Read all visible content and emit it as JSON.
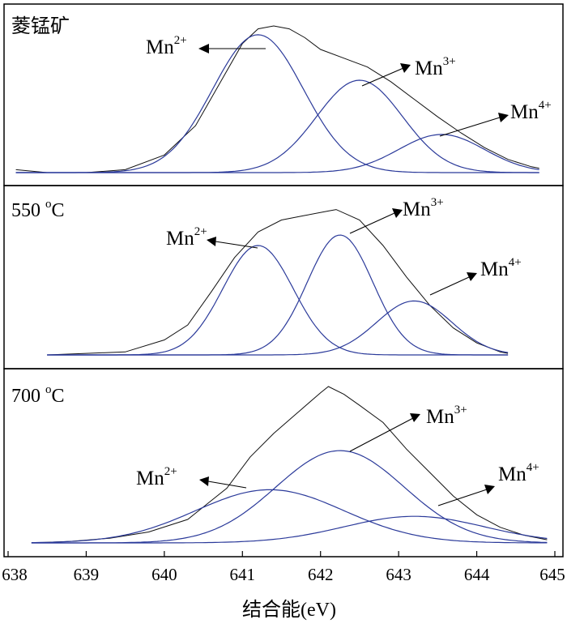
{
  "chart_data": {
    "type": "line",
    "xlabel": "结合能(eV)",
    "xlim": [
      638,
      645
    ],
    "x_ticks": [
      "638",
      "639",
      "640",
      "641",
      "642",
      "643",
      "644",
      "645"
    ],
    "panels": [
      {
        "name": "菱锰矿",
        "title_main": "菱锰矿",
        "title_sup": "",
        "title_tail": "",
        "envelope": [
          [
            638.1,
            0.02
          ],
          [
            638.5,
            0.0
          ],
          [
            639.0,
            0.0
          ],
          [
            639.5,
            0.02
          ],
          [
            640.0,
            0.12
          ],
          [
            640.4,
            0.32
          ],
          [
            640.7,
            0.6
          ],
          [
            641.0,
            0.88
          ],
          [
            641.2,
            0.98
          ],
          [
            641.4,
            1.0
          ],
          [
            641.6,
            0.98
          ],
          [
            641.8,
            0.92
          ],
          [
            642.0,
            0.84
          ],
          [
            642.3,
            0.78
          ],
          [
            642.6,
            0.72
          ],
          [
            642.9,
            0.62
          ],
          [
            643.2,
            0.5
          ],
          [
            643.5,
            0.38
          ],
          [
            643.8,
            0.27
          ],
          [
            644.1,
            0.17
          ],
          [
            644.4,
            0.09
          ],
          [
            644.7,
            0.04
          ],
          [
            644.8,
            0.03
          ]
        ],
        "components": [
          {
            "label": "Mn",
            "charge": "2+",
            "center": 641.2,
            "height": 0.94,
            "sigma": 0.58
          },
          {
            "label": "Mn",
            "charge": "3+",
            "center": 642.5,
            "height": 0.63,
            "sigma": 0.55
          },
          {
            "label": "Mn",
            "charge": "4+",
            "center": 643.55,
            "height": 0.26,
            "sigma": 0.55
          }
        ],
        "annotations": [
          {
            "text": "Mn",
            "sup": "2+"
          },
          {
            "text": "Mn",
            "sup": "3+"
          },
          {
            "text": "Mn",
            "sup": "4+"
          }
        ]
      },
      {
        "name": "550 °C",
        "title_main": "550 ",
        "title_sup": "o",
        "title_tail": "C",
        "envelope": [
          [
            638.5,
            0.0
          ],
          [
            639.0,
            0.01
          ],
          [
            639.5,
            0.02
          ],
          [
            640.0,
            0.1
          ],
          [
            640.3,
            0.2
          ],
          [
            640.6,
            0.42
          ],
          [
            640.9,
            0.65
          ],
          [
            641.2,
            0.82
          ],
          [
            641.5,
            0.9
          ],
          [
            641.8,
            0.93
          ],
          [
            642.1,
            0.96
          ],
          [
            642.2,
            0.97
          ],
          [
            642.5,
            0.9
          ],
          [
            642.8,
            0.73
          ],
          [
            643.1,
            0.52
          ],
          [
            643.4,
            0.33
          ],
          [
            643.7,
            0.18
          ],
          [
            644.0,
            0.08
          ],
          [
            644.3,
            0.02
          ],
          [
            644.4,
            0.01
          ]
        ],
        "components": [
          {
            "label": "Mn",
            "charge": "2+",
            "center": 641.2,
            "height": 0.73,
            "sigma": 0.45
          },
          {
            "label": "Mn",
            "charge": "3+",
            "center": 642.25,
            "height": 0.8,
            "sigma": 0.42
          },
          {
            "label": "Mn",
            "charge": "4+",
            "center": 643.2,
            "height": 0.36,
            "sigma": 0.48
          }
        ],
        "annotations": [
          {
            "text": "Mn",
            "sup": "2+"
          },
          {
            "text": "Mn",
            "sup": "3+"
          },
          {
            "text": "Mn",
            "sup": "4+"
          }
        ]
      },
      {
        "name": "700 °C",
        "title_main": "700 ",
        "title_sup": "o",
        "title_tail": "C",
        "envelope": [
          [
            638.3,
            0.0
          ],
          [
            638.8,
            0.01
          ],
          [
            639.3,
            0.03
          ],
          [
            639.8,
            0.07
          ],
          [
            640.3,
            0.15
          ],
          [
            640.8,
            0.35
          ],
          [
            641.1,
            0.55
          ],
          [
            641.4,
            0.7
          ],
          [
            641.7,
            0.83
          ],
          [
            642.0,
            0.96
          ],
          [
            642.1,
            1.0
          ],
          [
            642.3,
            0.95
          ],
          [
            642.5,
            0.88
          ],
          [
            642.8,
            0.77
          ],
          [
            643.1,
            0.6
          ],
          [
            643.4,
            0.45
          ],
          [
            643.7,
            0.3
          ],
          [
            644.0,
            0.18
          ],
          [
            644.3,
            0.1
          ],
          [
            644.6,
            0.05
          ],
          [
            644.9,
            0.02
          ]
        ],
        "components": [
          {
            "label": "Mn",
            "charge": "2+",
            "center": 641.35,
            "height": 0.34,
            "sigma": 0.95
          },
          {
            "label": "Mn",
            "charge": "3+",
            "center": 642.25,
            "height": 0.59,
            "sigma": 0.82
          },
          {
            "label": "Mn",
            "charge": "4+",
            "center": 643.2,
            "height": 0.17,
            "sigma": 0.9
          }
        ],
        "annotations": [
          {
            "text": "Mn",
            "sup": "2+"
          },
          {
            "text": "Mn",
            "sup": "3+"
          },
          {
            "text": "Mn",
            "sup": "4+"
          }
        ]
      }
    ]
  }
}
